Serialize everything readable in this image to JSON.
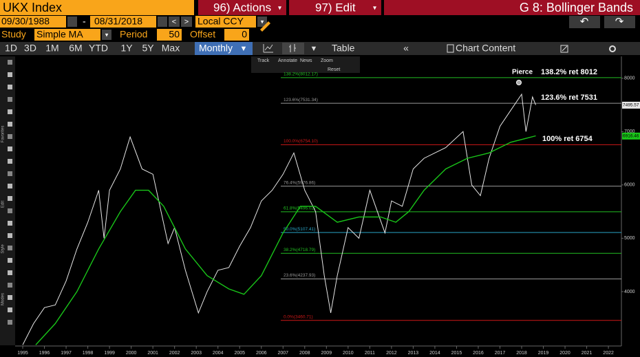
{
  "ui": {
    "ticker": "UKX Index",
    "actions": "96) Actions",
    "edit": "97) Edit",
    "chart_name": "G 8: Bollinger Bands",
    "start_date": "09/30/1988",
    "date_sep": "-",
    "end_date": "08/31/2018",
    "currency": "Local CCY",
    "study_label": "Study",
    "study": "Simple MA",
    "period_label": "Period",
    "period": 50,
    "offset_label": "Offset",
    "offset": 0,
    "ranges": [
      "1D",
      "3D",
      "1M",
      "6M",
      "YTD",
      "1Y",
      "5Y",
      "Max"
    ],
    "frequency": "Monthly",
    "table": "Table",
    "chart_content": "Chart Content",
    "chart_tools": [
      "Track",
      "Annotate",
      "News",
      "Zoom"
    ],
    "reset": "Reset",
    "side_labels": [
      "Favorites",
      "Edit",
      "Style",
      "Modes"
    ]
  },
  "chart_data": {
    "type": "line",
    "xlim": [
      1994.65,
      2022.6
    ],
    "xticks": [
      1995,
      1996,
      1997,
      1998,
      1999,
      2000,
      2001,
      2002,
      2003,
      2004,
      2005,
      2006,
      2007,
      2008,
      2009,
      2010,
      2011,
      2012,
      2013,
      2014,
      2015,
      2016,
      2017,
      2018,
      2019,
      2020,
      2021,
      2022
    ],
    "ylim": [
      2980,
      8410
    ],
    "yticks": [
      4000,
      5000,
      6000,
      7000,
      8000
    ],
    "series": [
      {
        "name": "UKX Index",
        "color": "#e8e8e8",
        "x": [
          1995.0,
          1995.5,
          1996.0,
          1996.5,
          1997.0,
          1997.5,
          1998.0,
          1998.5,
          1998.75,
          1999.0,
          1999.5,
          1999.95,
          2000.5,
          2001.0,
          2001.7,
          2002.0,
          2002.5,
          2003.1,
          2003.5,
          2004.0,
          2004.5,
          2005.0,
          2005.5,
          2006.0,
          2006.5,
          2007.0,
          2007.5,
          2008.0,
          2008.5,
          2008.9,
          2009.2,
          2009.5,
          2010.0,
          2010.5,
          2011.0,
          2011.7,
          2012.0,
          2012.5,
          2013.0,
          2013.5,
          2014.0,
          2014.5,
          2015.3,
          2015.7,
          2016.1,
          2016.5,
          2017.0,
          2017.5,
          2018.0,
          2018.2,
          2018.5,
          2018.65
        ],
        "values": [
          3000,
          3400,
          3700,
          3750,
          4200,
          4800,
          5300,
          5900,
          5000,
          5900,
          6300,
          6900,
          6300,
          6200,
          4900,
          5200,
          4400,
          3600,
          4000,
          4400,
          4450,
          4850,
          5200,
          5700,
          5900,
          6200,
          6600,
          5900,
          5500,
          4300,
          3600,
          4300,
          5200,
          5000,
          5900,
          5100,
          5700,
          5600,
          6300,
          6500,
          6600,
          6700,
          7000,
          6000,
          5800,
          6500,
          7100,
          7400,
          7700,
          7000,
          7650,
          7500
        ]
      },
      {
        "name": "Simple MA",
        "color": "#19c519",
        "x": [
          1995.6,
          1996.5,
          1997.5,
          1998.5,
          1999.5,
          2000.2,
          2000.8,
          2001.5,
          2002.5,
          2003.5,
          2004.5,
          2005.2,
          2006.0,
          2007.0,
          2007.8,
          2008.5,
          2009.5,
          2010.5,
          2011.5,
          2012.2,
          2012.8,
          2013.5,
          2014.5,
          2015.5,
          2016.5,
          2017.5,
          2018.65
        ],
        "values": [
          3000,
          3400,
          4000,
          4800,
          5500,
          5900,
          5900,
          5600,
          4800,
          4300,
          4050,
          3950,
          4300,
          5100,
          5600,
          5600,
          5300,
          5400,
          5400,
          5300,
          5500,
          5900,
          6300,
          6500,
          6600,
          6800,
          6920
        ]
      }
    ],
    "levels": [
      {
        "label": "138.2%(8012.17)",
        "value": 8012.17,
        "color": "#22c022"
      },
      {
        "label": "123.6%(7531.34)",
        "value": 7531.34,
        "color": "#9a9a9a"
      },
      {
        "label": "100.0%(6754.10)",
        "value": 6754.1,
        "color": "#d01818"
      },
      {
        "label": "76.4%(5976.86)",
        "value": 5976.86,
        "color": "#9a9a9a"
      },
      {
        "label": "61.8%(5496.02)",
        "value": 5496.02,
        "color": "#22c022"
      },
      {
        "label": "50.0%(5107.41)",
        "value": 5107.41,
        "color": "#2aa6c8"
      },
      {
        "label": "38.2%(4718.79)",
        "value": 4718.79,
        "color": "#22c022"
      },
      {
        "label": "23.6%(4237.93)",
        "value": 4237.93,
        "color": "#9a9a9a"
      },
      {
        "label": "0.0%(3460.71)",
        "value": 3460.71,
        "color": "#d01818"
      }
    ],
    "annotations": [
      "Pierce",
      "138.2% ret 8012",
      "123.6% ret 7531",
      "100% ret 6754"
    ],
    "last_price": 7495.57,
    "last_ma": 6916.46
  }
}
